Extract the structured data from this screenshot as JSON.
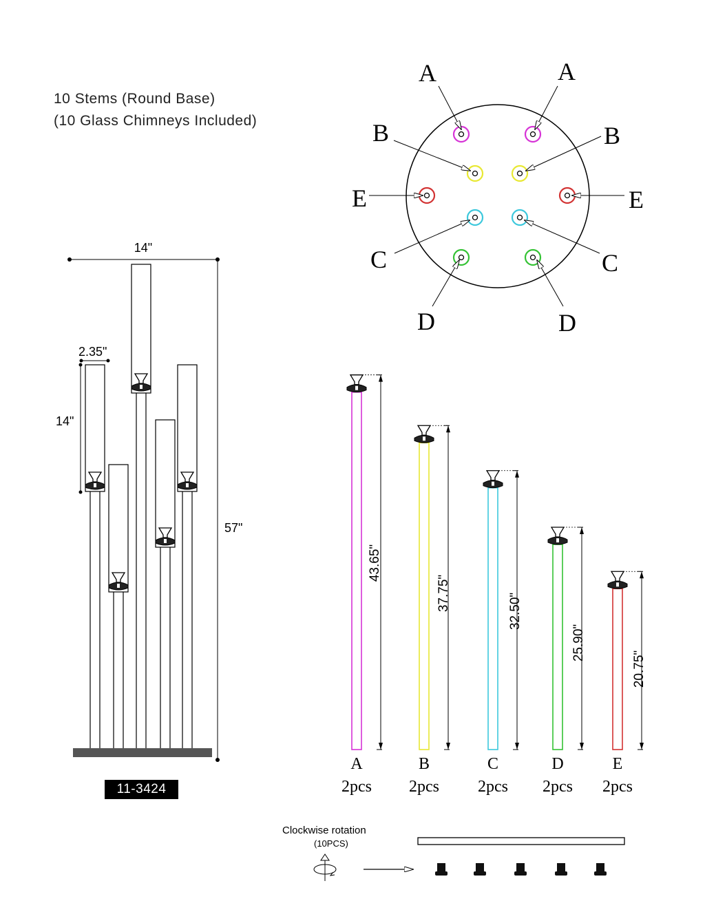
{
  "title": {
    "line1": "10 Stems (Round Base)",
    "line2": "(10 Glass Chimneys Included)"
  },
  "model_number": "11-3424",
  "overall_dims": {
    "width": "14\"",
    "height": "57\"",
    "chimney_height": "14\"",
    "chimney_diameter": "2.35\""
  },
  "colors": {
    "A": "#d633d6",
    "B": "#e8e832",
    "C": "#3cc8dc",
    "D": "#34c234",
    "E": "#d23232"
  },
  "base_labels": {
    "A": "A",
    "B": "B",
    "C": "C",
    "D": "D",
    "E": "E"
  },
  "stems": [
    {
      "letter": "A",
      "length": "43.65\"",
      "qty": "2pcs",
      "value": 43.65
    },
    {
      "letter": "B",
      "length": "37.75\"",
      "qty": "2pcs",
      "value": 37.75
    },
    {
      "letter": "C",
      "length": "32.50\"",
      "qty": "2pcs",
      "value": 32.5
    },
    {
      "letter": "D",
      "length": "25.90\"",
      "qty": "2pcs",
      "value": 25.9
    },
    {
      "letter": "E",
      "length": "20.75\"",
      "qty": "2pcs",
      "value": 20.75
    }
  ],
  "rotation": {
    "label": "Clockwise rotation",
    "count": "(10PCS)"
  }
}
